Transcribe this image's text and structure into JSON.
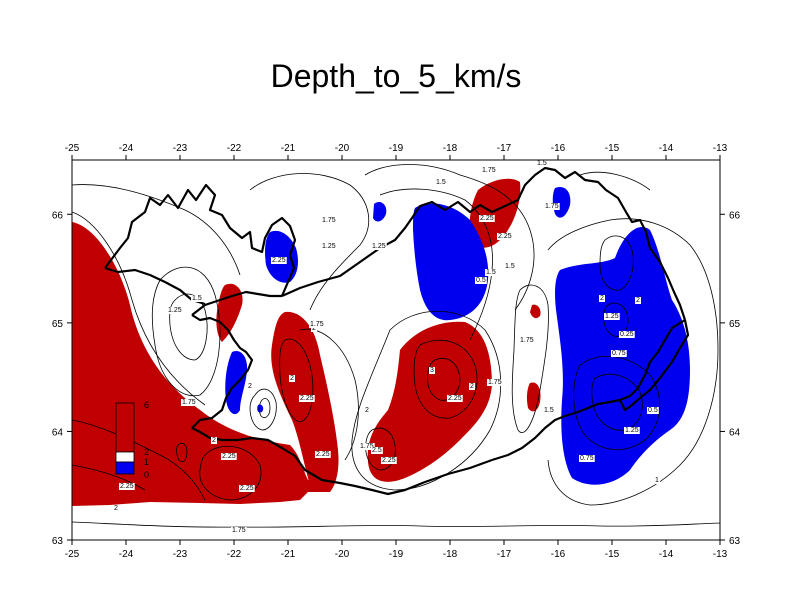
{
  "title": "Depth_to_5_km/s",
  "colors": {
    "high": "#c00000",
    "low": "#0000ee",
    "frame": "#000000"
  },
  "x_ticks": [
    "-25",
    "-24",
    "-23",
    "-22",
    "-21",
    "-20",
    "-19",
    "-18",
    "-17",
    "-16",
    "-15",
    "-14",
    "-13"
  ],
  "y_ticks": [
    "66",
    "65",
    "64",
    "63"
  ],
  "x_ticks_bottom": [
    "-25",
    "-24",
    "-23",
    "-22",
    "-21",
    "-20",
    "-19",
    "-18",
    "-17",
    "-16",
    "-15",
    "-14",
    "-13"
  ],
  "legend": {
    "top": "6",
    "mid": "2",
    "low": "1",
    "bottom": "0"
  },
  "contour_labels": [
    "1.75",
    "1.5",
    "2",
    "2.25",
    "1.25",
    "1",
    "0.75",
    "0.5",
    "0.25",
    "2.5",
    "3"
  ],
  "chart_data": {
    "type": "heatmap",
    "title": "Depth_to_5_km/s",
    "xlim": [
      -25,
      -13
    ],
    "ylim": [
      63,
      66.5
    ],
    "x_ticks": [
      -25,
      -24,
      -23,
      -22,
      -21,
      -20,
      -19,
      -18,
      -17,
      -16,
      -15,
      -14,
      -13
    ],
    "y_ticks": [
      63,
      64,
      65,
      66
    ],
    "legend_scale": {
      "min": 0,
      "max": 6,
      "shaded_low_below": 1,
      "shaded_high_above": 2
    },
    "contour_levels": [
      0.25,
      0.5,
      0.75,
      1,
      1.25,
      1.5,
      1.75,
      2,
      2.25,
      2.5,
      3
    ]
  }
}
